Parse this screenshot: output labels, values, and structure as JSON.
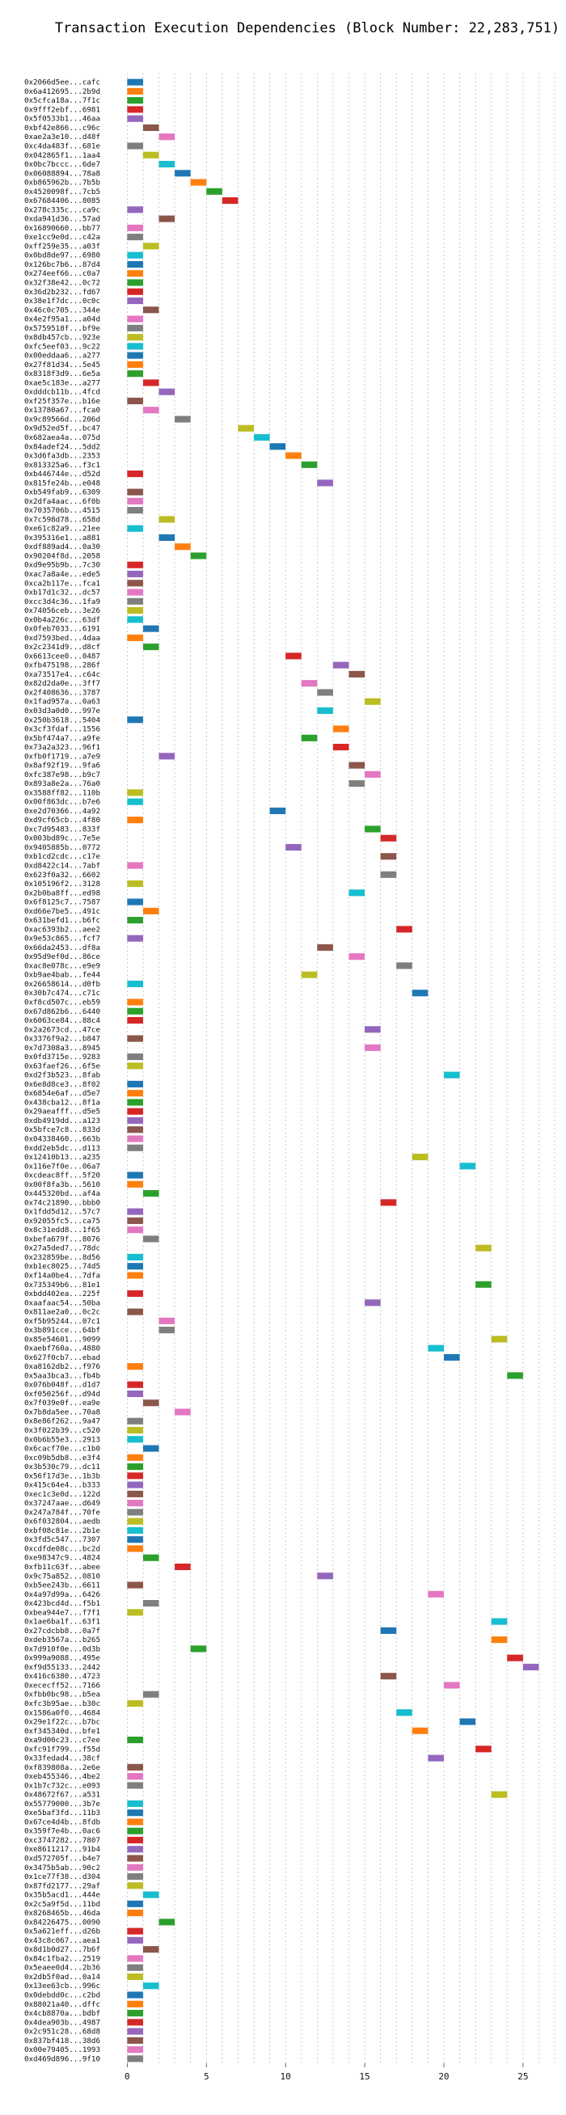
{
  "chart_data": {
    "type": "bar",
    "title": "Transaction Execution Dependencies (Block Number: 22,283,751)",
    "xlabel": "",
    "ylabel": "",
    "xlim": [
      -1.5,
      27
    ],
    "xticks": [
      0,
      5,
      10,
      15,
      20,
      25
    ],
    "grid": true,
    "bar_width": 1,
    "colors": [
      "#1f77b4",
      "#ff7f0e",
      "#2ca02c",
      "#d62728",
      "#9467bd",
      "#8c564b",
      "#e377c2",
      "#7f7f7f",
      "#bcbd22",
      "#17becf"
    ],
    "transactions": [
      {
        "label": "0x2066d5ee...cafc",
        "start": 0
      },
      {
        "label": "0x6a412695...2b9d",
        "start": 0
      },
      {
        "label": "0x5cfca18a...7f1c",
        "start": 0
      },
      {
        "label": "0x9fff2ebf...6981",
        "start": 0
      },
      {
        "label": "0x5f0533b1...46aa",
        "start": 0
      },
      {
        "label": "0xbf42e866...c96c",
        "start": 1
      },
      {
        "label": "0xae2a3e10...d48f",
        "start": 2
      },
      {
        "label": "0xc4da483f...681e",
        "start": 0
      },
      {
        "label": "0x042865f1...1aa4",
        "start": 1
      },
      {
        "label": "0x0bc7bccc...6de7",
        "start": 2
      },
      {
        "label": "0x06088894...78a8",
        "start": 3
      },
      {
        "label": "0xb865962b...7b5b",
        "start": 4
      },
      {
        "label": "0x4520098f...7cb5",
        "start": 5
      },
      {
        "label": "0x67684406...8085",
        "start": 6
      },
      {
        "label": "0x278c335c...ca9c",
        "start": 0
      },
      {
        "label": "0xda941d36...57ad",
        "start": 2
      },
      {
        "label": "0x16890660...bb77",
        "start": 0
      },
      {
        "label": "0xe1cc9e0d...c42a",
        "start": 0
      },
      {
        "label": "0xff259e35...a03f",
        "start": 1
      },
      {
        "label": "0x0bd8de97...6980",
        "start": 0
      },
      {
        "label": "0x126bc7b6...87d4",
        "start": 0
      },
      {
        "label": "0x274eef66...c0a7",
        "start": 0
      },
      {
        "label": "0x32f38e42...0c72",
        "start": 0
      },
      {
        "label": "0x36d2b232...fd67",
        "start": 0
      },
      {
        "label": "0x38e1f7dc...0c0c",
        "start": 0
      },
      {
        "label": "0x46c0c705...344e",
        "start": 1
      },
      {
        "label": "0x4e2f95a1...a04d",
        "start": 0
      },
      {
        "label": "0x5759518f...bf9e",
        "start": 0
      },
      {
        "label": "0x8db457cb...923e",
        "start": 0
      },
      {
        "label": "0xfc5eef03...9c22",
        "start": 0
      },
      {
        "label": "0x00eddaa6...a277",
        "start": 0
      },
      {
        "label": "0x27f81d34...5e45",
        "start": 0
      },
      {
        "label": "0x8318f3d9...6e5a",
        "start": 0
      },
      {
        "label": "0xae5c183e...a277",
        "start": 1
      },
      {
        "label": "0xdddcb11b...4fcd",
        "start": 2
      },
      {
        "label": "0xf25f357e...b16e",
        "start": 0
      },
      {
        "label": "0x13780a67...fca0",
        "start": 1
      },
      {
        "label": "0x9c89566d...206d",
        "start": 3
      },
      {
        "label": "0x9d52ed5f...bc47",
        "start": 7
      },
      {
        "label": "0x682aea4a...075d",
        "start": 8
      },
      {
        "label": "0x84adef24...5dd2",
        "start": 9
      },
      {
        "label": "0x3d6fa3db...2353",
        "start": 10
      },
      {
        "label": "0x813325a6...f3c1",
        "start": 11
      },
      {
        "label": "0xb446744e...d52d",
        "start": 0
      },
      {
        "label": "0x815fe24b...e048",
        "start": 12
      },
      {
        "label": "0xb549fab9...6309",
        "start": 0
      },
      {
        "label": "0x2dfa4aac...6f0b",
        "start": 0
      },
      {
        "label": "0x7035706b...4515",
        "start": 0
      },
      {
        "label": "0x7c598d78...658d",
        "start": 2
      },
      {
        "label": "0xe61c82a9...21ee",
        "start": 0
      },
      {
        "label": "0x395316e1...a881",
        "start": 2
      },
      {
        "label": "0xdf889ad4...0a30",
        "start": 3
      },
      {
        "label": "0x90204f8d...2058",
        "start": 4
      },
      {
        "label": "0xd9e95b9b...7c30",
        "start": 0
      },
      {
        "label": "0xac7a8a4e...ede5",
        "start": 0
      },
      {
        "label": "0xca2b117e...fca1",
        "start": 0
      },
      {
        "label": "0xb17d1c32...dc57",
        "start": 0
      },
      {
        "label": "0xcc3d4c36...1fa9",
        "start": 0
      },
      {
        "label": "0x74056ceb...3e26",
        "start": 0
      },
      {
        "label": "0x0b4a226c...63df",
        "start": 0
      },
      {
        "label": "0x0feb7033...6191",
        "start": 1
      },
      {
        "label": "0xd7593bed...4daa",
        "start": 0
      },
      {
        "label": "0x2c2341d9...d8cf",
        "start": 1
      },
      {
        "label": "0x6613cee0...0487",
        "start": 10
      },
      {
        "label": "0xfb475198...286f",
        "start": 13
      },
      {
        "label": "0xa73517e4...c64c",
        "start": 14
      },
      {
        "label": "0x82d2da0e...3ff7",
        "start": 11
      },
      {
        "label": "0x2f408636...3787",
        "start": 12
      },
      {
        "label": "0x1fad957a...0a63",
        "start": 15
      },
      {
        "label": "0x03d3a0d0...997e",
        "start": 12
      },
      {
        "label": "0x250b3618...5404",
        "start": 0
      },
      {
        "label": "0x3cf3fdaf...1556",
        "start": 13
      },
      {
        "label": "0x5bf474a7...a9fe",
        "start": 11
      },
      {
        "label": "0x73a2a323...96f1",
        "start": 13
      },
      {
        "label": "0xfb0f1719...a7e9",
        "start": 2
      },
      {
        "label": "0x8af92f19...9fa6",
        "start": 14
      },
      {
        "label": "0xfc387e98...b9c7",
        "start": 15
      },
      {
        "label": "0x893a8e2a...76a0",
        "start": 14
      },
      {
        "label": "0x3588ff82...110b",
        "start": 0
      },
      {
        "label": "0x00f863dc...b7e6",
        "start": 0
      },
      {
        "label": "0xe2d70366...4a92",
        "start": 9
      },
      {
        "label": "0xd9cf65cb...4f80",
        "start": 0
      },
      {
        "label": "0xc7d95483...833f",
        "start": 15
      },
      {
        "label": "0x003bd89c...7e5e",
        "start": 16
      },
      {
        "label": "0x9405885b...0772",
        "start": 10
      },
      {
        "label": "0xb1cd2cdc...c17e",
        "start": 16
      },
      {
        "label": "0xd8422c14...7abf",
        "start": 0
      },
      {
        "label": "0x623f0a32...6602",
        "start": 16
      },
      {
        "label": "0x105196f2...3128",
        "start": 0
      },
      {
        "label": "0x2b0ba8ff...ed98",
        "start": 14
      },
      {
        "label": "0x6f8125c7...7587",
        "start": 0
      },
      {
        "label": "0xd66e7be5...491c",
        "start": 1
      },
      {
        "label": "0x631befd1...b6fc",
        "start": 0
      },
      {
        "label": "0xac6393b2...aee2",
        "start": 17
      },
      {
        "label": "0x9e53c865...fcf7",
        "start": 0
      },
      {
        "label": "0x66da2453...df8a",
        "start": 12
      },
      {
        "label": "0x95d9ef0d...86ce",
        "start": 14
      },
      {
        "label": "0xac8e078c...e9e9",
        "start": 17
      },
      {
        "label": "0xb9ae4bab...fe44",
        "start": 11
      },
      {
        "label": "0x26658614...d0fb",
        "start": 0
      },
      {
        "label": "0x30b7c474...c71c",
        "start": 18
      },
      {
        "label": "0xf8cd507c...eb59",
        "start": 0
      },
      {
        "label": "0x67d862b6...6440",
        "start": 0
      },
      {
        "label": "0x6063ce84...88c4",
        "start": 0
      },
      {
        "label": "0x2a2673cd...47ce",
        "start": 15
      },
      {
        "label": "0x3376f9a2...b847",
        "start": 0
      },
      {
        "label": "0x7d7308a3...8945",
        "start": 15
      },
      {
        "label": "0x0fd3715e...9283",
        "start": 0
      },
      {
        "label": "0x63faef26...6f5e",
        "start": 0
      },
      {
        "label": "0xd2f3b523...8fab",
        "start": 20
      },
      {
        "label": "0x6e8d8ce3...8f02",
        "start": 0
      },
      {
        "label": "0x6854e6af...d5e7",
        "start": 0
      },
      {
        "label": "0x438cba12...8f1a",
        "start": 0
      },
      {
        "label": "0x29aeafff...d5e5",
        "start": 0
      },
      {
        "label": "0xdb4919dd...a123",
        "start": 0
      },
      {
        "label": "0x5bfce7c8...833d",
        "start": 0
      },
      {
        "label": "0x04338460...663b",
        "start": 0
      },
      {
        "label": "0xdd2eb5dc...d113",
        "start": 0
      },
      {
        "label": "0x12410b13...a235",
        "start": 18
      },
      {
        "label": "0x116e7f0e...06a7",
        "start": 21
      },
      {
        "label": "0xcdeac8ff...5f20",
        "start": 0
      },
      {
        "label": "0x00f8fa3b...5610",
        "start": 0
      },
      {
        "label": "0x445320bd...af4a",
        "start": 1
      },
      {
        "label": "0x74c21890...bbb0",
        "start": 16
      },
      {
        "label": "0x1fdd5d12...57c7",
        "start": 0
      },
      {
        "label": "0x92055fc5...ca75",
        "start": 0
      },
      {
        "label": "0x8c31edd8...1f65",
        "start": 0
      },
      {
        "label": "0xbefa679f...8076",
        "start": 1
      },
      {
        "label": "0x27a5ded7...78dc",
        "start": 22
      },
      {
        "label": "0x232859be...8d56",
        "start": 0
      },
      {
        "label": "0xb1ec8025...74d5",
        "start": 0
      },
      {
        "label": "0xf14a0be4...7dfa",
        "start": 0
      },
      {
        "label": "0x735349b6...81e1",
        "start": 22
      },
      {
        "label": "0xbdd402ea...225f",
        "start": 0
      },
      {
        "label": "0xaafaac54...50ba",
        "start": 15
      },
      {
        "label": "0x811ae2a0...0c2c",
        "start": 0
      },
      {
        "label": "0xf5b95244...07c1",
        "start": 2
      },
      {
        "label": "0x3b891cce...64bf",
        "start": 2
      },
      {
        "label": "0x85e54601...9099",
        "start": 23
      },
      {
        "label": "0xaebf760a...4880",
        "start": 19
      },
      {
        "label": "0x627f0cb7...ebad",
        "start": 20
      },
      {
        "label": "0xa8162db2...f976",
        "start": 0
      },
      {
        "label": "0x5aa3bca3...fb4b",
        "start": 24
      },
      {
        "label": "0x076b048f...d1d7",
        "start": 0
      },
      {
        "label": "0xf050256f...d94d",
        "start": 0
      },
      {
        "label": "0x7f039e0f...ea9e",
        "start": 1
      },
      {
        "label": "0x7b8da5ee...70a8",
        "start": 3
      },
      {
        "label": "0x8e86f262...9a47",
        "start": 0
      },
      {
        "label": "0x3f022b39...c520",
        "start": 0
      },
      {
        "label": "0x0b6b55e3...2913",
        "start": 0
      },
      {
        "label": "0x6cacf70e...c1b0",
        "start": 1
      },
      {
        "label": "0xc09b5db8...e3f4",
        "start": 0
      },
      {
        "label": "0x3b530c79...dc11",
        "start": 0
      },
      {
        "label": "0x56f17d3e...1b3b",
        "start": 0
      },
      {
        "label": "0x415c64e4...b333",
        "start": 0
      },
      {
        "label": "0xec1c3e0d...122d",
        "start": 0
      },
      {
        "label": "0x37247aae...d649",
        "start": 0
      },
      {
        "label": "0x247a784f...70fe",
        "start": 0
      },
      {
        "label": "0x6f032804...aedb",
        "start": 0
      },
      {
        "label": "0xbf08c81e...2b1e",
        "start": 0
      },
      {
        "label": "0x3fd5c547...7307",
        "start": 0
      },
      {
        "label": "0xcdfde08c...bc2d",
        "start": 0
      },
      {
        "label": "0xe98347c9...4824",
        "start": 1
      },
      {
        "label": "0xfb11c63f...abee",
        "start": 3
      },
      {
        "label": "0x9c75a852...0810",
        "start": 12
      },
      {
        "label": "0xb5ee243b...6611",
        "start": 0
      },
      {
        "label": "0x4a97d99a...6426",
        "start": 19
      },
      {
        "label": "0x423bcd4d...f5b1",
        "start": 1
      },
      {
        "label": "0xbea944e7...f7f1",
        "start": 0
      },
      {
        "label": "0x1ae6ba1f...63f1",
        "start": 23
      },
      {
        "label": "0x27cdcbb8...0a7f",
        "start": 16
      },
      {
        "label": "0xdeb3567a...b265",
        "start": 23
      },
      {
        "label": "0x7d910f0e...0d3b",
        "start": 4
      },
      {
        "label": "0x999a9088...495e",
        "start": 24
      },
      {
        "label": "0xf9d55133...2442",
        "start": 25
      },
      {
        "label": "0x416c6380...4723",
        "start": 16
      },
      {
        "label": "0xececff52...7166",
        "start": 20
      },
      {
        "label": "0xfbb0bc98...b5ea",
        "start": 1
      },
      {
        "label": "0xfc3b95ae...b30c",
        "start": 0
      },
      {
        "label": "0x1586a0f0...4684",
        "start": 17
      },
      {
        "label": "0x29e1f22c...b7bc",
        "start": 21
      },
      {
        "label": "0xf345340d...bfe1",
        "start": 18
      },
      {
        "label": "0xa9d00c23...c7ee",
        "start": 0
      },
      {
        "label": "0xfc91f799...f55d",
        "start": 22
      },
      {
        "label": "0x33fedad4...38cf",
        "start": 19
      },
      {
        "label": "0xf839808a...2e6e",
        "start": 0
      },
      {
        "label": "0xeb455346...4be2",
        "start": 0
      },
      {
        "label": "0x1b7c732c...e093",
        "start": 0
      },
      {
        "label": "0x48672f67...a531",
        "start": 23
      },
      {
        "label": "0x55779000...3b7e",
        "start": 0
      },
      {
        "label": "0xe5baf3fd...11b3",
        "start": 0
      },
      {
        "label": "0x67ce4d4b...8fdb",
        "start": 0
      },
      {
        "label": "0x359f7e4b...0ac6",
        "start": 0
      },
      {
        "label": "0xc3747282...7807",
        "start": 0
      },
      {
        "label": "0xe8611217...91b4",
        "start": 0
      },
      {
        "label": "0xd572705f...b4e7",
        "start": 0
      },
      {
        "label": "0x3475b5ab...90c2",
        "start": 0
      },
      {
        "label": "0x1ce77f38...d304",
        "start": 0
      },
      {
        "label": "0x87fd2177...29af",
        "start": 0
      },
      {
        "label": "0x35b5acd1...444e",
        "start": 1
      },
      {
        "label": "0x2c5a9f5d...11bd",
        "start": 0
      },
      {
        "label": "0x8268465b...46da",
        "start": 0
      },
      {
        "label": "0x84226475...0090",
        "start": 2
      },
      {
        "label": "0x5a621eff...d26b",
        "start": 0
      },
      {
        "label": "0x43c8c067...aea1",
        "start": 0
      },
      {
        "label": "0x8d1b0d27...7b6f",
        "start": 1
      },
      {
        "label": "0x84c1fba2...2519",
        "start": 0
      },
      {
        "label": "0x5eaee0d4...2b36",
        "start": 0
      },
      {
        "label": "0x2db5f0ad...0a14",
        "start": 0
      },
      {
        "label": "0x13ee63cb...996c",
        "start": 1
      },
      {
        "label": "0x0debdd0c...c2bd",
        "start": 0
      },
      {
        "label": "0x88021a40...dffc",
        "start": 0
      },
      {
        "label": "0x4cb8870a...bdbf",
        "start": 0
      },
      {
        "label": "0x4dea903b...4987",
        "start": 0
      },
      {
        "label": "0x2c951c28...68d8",
        "start": 0
      },
      {
        "label": "0x837bf418...38d6",
        "start": 0
      },
      {
        "label": "0x00e79405...1993",
        "start": 0
      },
      {
        "label": "0xd469d896...9f10",
        "start": 0
      }
    ]
  }
}
